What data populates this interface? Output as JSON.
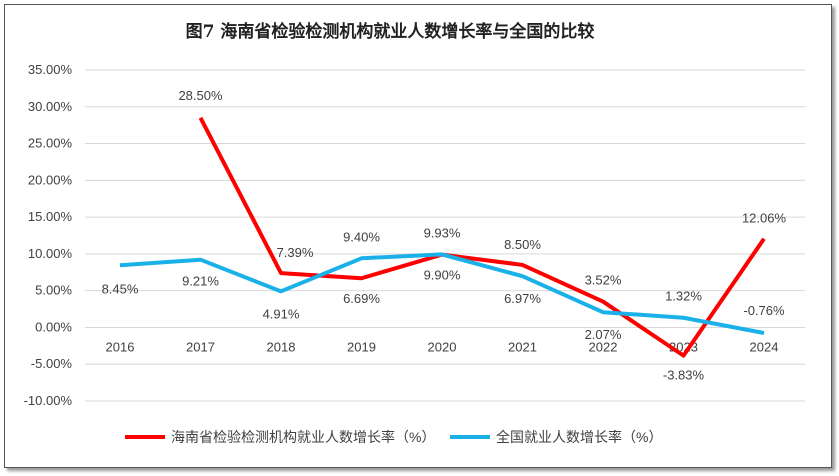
{
  "chart_data": {
    "type": "line",
    "title": "图7 海南省检验检测机构就业人数增长率与全国的比较",
    "categories": [
      "2016",
      "2017",
      "2018",
      "2019",
      "2020",
      "2021",
      "2022",
      "2023",
      "2024"
    ],
    "ylim": [
      -10,
      35
    ],
    "yticks": [
      "-10.00%",
      "-5.00%",
      "0.00%",
      "5.00%",
      "10.00%",
      "15.00%",
      "20.00%",
      "25.00%",
      "30.00%",
      "35.00%"
    ],
    "grid": true,
    "legend": "bottom",
    "series": [
      {
        "name": "海南省检验检测机构就业人数增长率（%）",
        "color": "#ff0000",
        "values": [
          null,
          28.5,
          7.39,
          6.69,
          9.9,
          8.5,
          3.52,
          -3.83,
          12.06
        ],
        "labels": [
          "",
          "28.50%",
          "7.39%",
          "6.69%",
          "9.90%",
          "8.50%",
          "3.52%",
          "-3.83%",
          "12.06%"
        ]
      },
      {
        "name": "全国就业人数增长率（%）",
        "color": "#1ab0e8",
        "values": [
          8.45,
          9.21,
          4.91,
          9.4,
          9.93,
          6.97,
          2.07,
          1.32,
          -0.76
        ],
        "labels": [
          "8.45%",
          "9.21%",
          "4.91%",
          "9.40%",
          "9.93%",
          "6.97%",
          "2.07%",
          "1.32%",
          "-0.76%"
        ]
      }
    ]
  }
}
